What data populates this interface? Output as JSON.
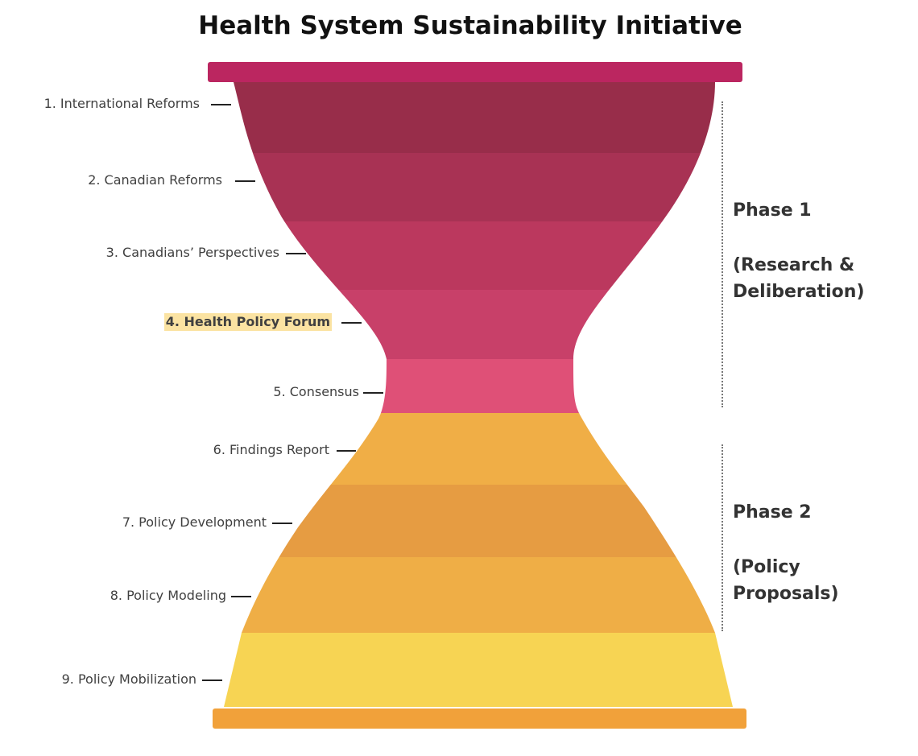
{
  "title": "Health System Sustainability Initiative",
  "colors": {
    "top_bar": "#bb2660",
    "bottom_bar": "#f1a13a"
  },
  "steps": [
    {
      "label": "1.  International Reforms",
      "color": "#982d4a"
    },
    {
      "label": "2. Canadian Reforms",
      "color": "#a83254"
    },
    {
      "label": "3. Canadians’ Perspectives",
      "color": "#bb385e"
    },
    {
      "label": "4. Health Policy Forum",
      "color": "#c84069",
      "highlighted": true
    },
    {
      "label": "5. Consensus",
      "color": "#df5077"
    },
    {
      "label": "6. Findings Report",
      "color": "#f0ae46"
    },
    {
      "label": "7. Policy Development",
      "color": "#e69c42"
    },
    {
      "label": "8. Policy Modeling",
      "color": "#efae46"
    },
    {
      "label": "9. Policy Mobilization",
      "color": "#f7d453"
    }
  ],
  "phases": [
    {
      "title": "Phase 1",
      "description_line1": "(Research &",
      "description_line2": "Deliberation)"
    },
    {
      "title": "Phase 2",
      "description_line1": "(Policy",
      "description_line2": "Proposals)"
    }
  ]
}
